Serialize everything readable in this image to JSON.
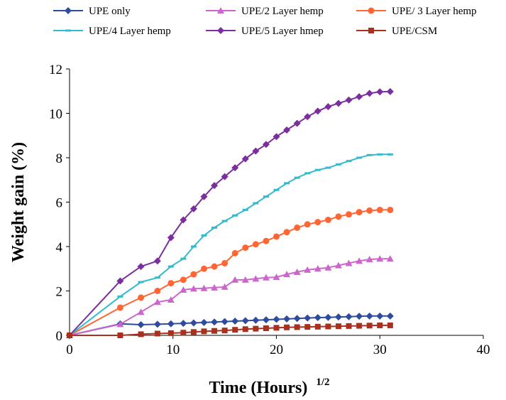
{
  "chart_data": {
    "type": "line",
    "title": "",
    "xlabel": "Time (Hours)",
    "xlabel_superscript": "1/2",
    "ylabel": "Weight gain (%)",
    "xlim": [
      0,
      40
    ],
    "ylim": [
      0,
      12
    ],
    "xticks": [
      0,
      10,
      20,
      30,
      40
    ],
    "yticks": [
      0,
      2,
      4,
      6,
      8,
      10,
      12
    ],
    "grid": false,
    "legend_position": "top",
    "series": [
      {
        "name": "UPE only",
        "color": "#2e4b9e",
        "marker": "diamond",
        "x": [
          0,
          4.9,
          6.9,
          8.5,
          9.8,
          11,
          12,
          13,
          14,
          15,
          16,
          17,
          18,
          19,
          20,
          21,
          22,
          23,
          24,
          25,
          26,
          27,
          28,
          29,
          30,
          31
        ],
        "y": [
          0,
          0.52,
          0.48,
          0.5,
          0.52,
          0.54,
          0.56,
          0.58,
          0.6,
          0.62,
          0.64,
          0.66,
          0.68,
          0.7,
          0.72,
          0.74,
          0.76,
          0.78,
          0.8,
          0.81,
          0.83,
          0.84,
          0.86,
          0.87,
          0.87,
          0.87
        ]
      },
      {
        "name": "UPE/2 Layer hemp",
        "color": "#cc66cc",
        "marker": "triangle",
        "x": [
          0,
          4.9,
          6.9,
          8.5,
          9.8,
          11,
          12,
          13,
          14,
          15,
          16,
          17,
          18,
          19,
          20,
          21,
          22,
          23,
          24,
          25,
          26,
          27,
          28,
          29,
          30,
          31
        ],
        "y": [
          0,
          0.5,
          1.05,
          1.5,
          1.6,
          2.05,
          2.1,
          2.12,
          2.15,
          2.18,
          2.5,
          2.5,
          2.55,
          2.6,
          2.62,
          2.75,
          2.85,
          2.95,
          3.0,
          3.05,
          3.15,
          3.25,
          3.35,
          3.42,
          3.45,
          3.45
        ]
      },
      {
        "name": "UPE/ 3 Layer hemp",
        "color": "#ff6633",
        "marker": "circle",
        "x": [
          0,
          4.9,
          6.9,
          8.5,
          9.8,
          11,
          12,
          13,
          14,
          15,
          16,
          17,
          18,
          19,
          20,
          21,
          22,
          23,
          24,
          25,
          26,
          27,
          28,
          29,
          30,
          31
        ],
        "y": [
          0,
          1.25,
          1.7,
          2.0,
          2.35,
          2.5,
          2.75,
          3.0,
          3.1,
          3.25,
          3.7,
          3.95,
          4.1,
          4.25,
          4.45,
          4.65,
          4.85,
          5.0,
          5.1,
          5.2,
          5.35,
          5.45,
          5.55,
          5.62,
          5.65,
          5.65
        ]
      },
      {
        "name": "UPE/4 Layer hemp",
        "color": "#33bbcc",
        "marker": "dash",
        "x": [
          0,
          4.9,
          6.9,
          8.5,
          9.8,
          11,
          12,
          13,
          14,
          15,
          16,
          17,
          18,
          19,
          20,
          21,
          22,
          23,
          24,
          25,
          26,
          27,
          28,
          29,
          30,
          31
        ],
        "y": [
          0,
          1.75,
          2.4,
          2.6,
          3.1,
          3.45,
          4.0,
          4.5,
          4.85,
          5.15,
          5.4,
          5.65,
          5.95,
          6.25,
          6.55,
          6.85,
          7.1,
          7.3,
          7.45,
          7.55,
          7.7,
          7.85,
          8.0,
          8.12,
          8.15,
          8.15
        ]
      },
      {
        "name": "UPE/5 Layer hmep",
        "color": "#7b2e9e",
        "marker": "diamond",
        "x": [
          0,
          4.9,
          6.9,
          8.5,
          9.8,
          11,
          12,
          13,
          14,
          15,
          16,
          17,
          18,
          19,
          20,
          21,
          22,
          23,
          24,
          25,
          26,
          27,
          28,
          29,
          30,
          31
        ],
        "y": [
          0,
          2.45,
          3.1,
          3.35,
          4.4,
          5.2,
          5.7,
          6.25,
          6.75,
          7.15,
          7.55,
          7.95,
          8.3,
          8.6,
          8.95,
          9.25,
          9.55,
          9.85,
          10.1,
          10.3,
          10.45,
          10.6,
          10.75,
          10.9,
          10.97,
          10.98
        ]
      },
      {
        "name": "UPE/CSM",
        "color": "#a8301e",
        "marker": "square",
        "x": [
          0,
          4.9,
          6.9,
          8.5,
          9.8,
          11,
          12,
          13,
          14,
          15,
          16,
          17,
          18,
          19,
          20,
          21,
          22,
          23,
          24,
          25,
          26,
          27,
          28,
          29,
          30,
          31
        ],
        "y": [
          0,
          0.0,
          0.05,
          0.08,
          0.1,
          0.12,
          0.15,
          0.18,
          0.2,
          0.22,
          0.25,
          0.28,
          0.3,
          0.32,
          0.34,
          0.36,
          0.37,
          0.38,
          0.39,
          0.4,
          0.41,
          0.42,
          0.43,
          0.44,
          0.45,
          0.45
        ]
      }
    ]
  }
}
